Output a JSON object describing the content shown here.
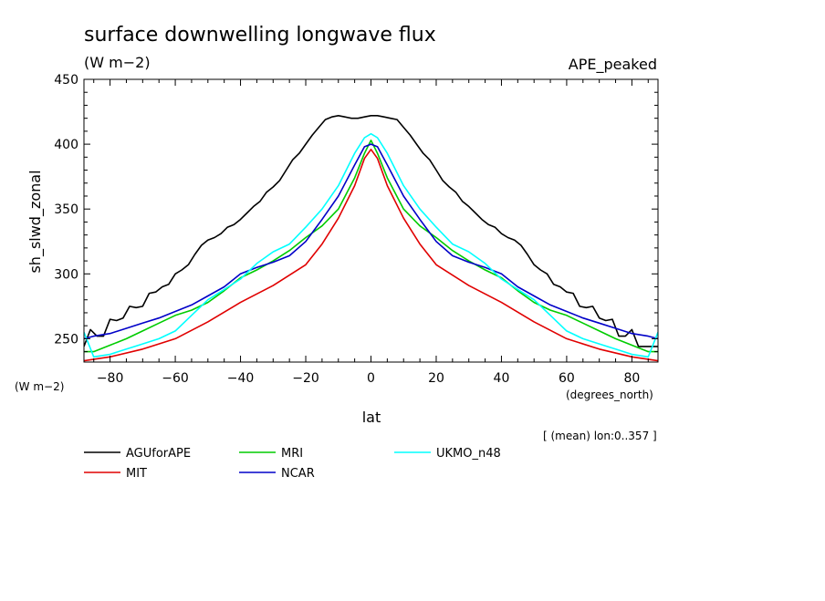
{
  "chart_data": {
    "type": "line",
    "title": "surface downwelling longwave flux",
    "units": "(W m−2)",
    "experiment": "APE_peaked",
    "ylabel": "sh_slwd_zonal",
    "yunits": "(W m−2)",
    "xlabel": "lat",
    "xunits": "(degrees_north)",
    "note": "[ (mean) lon:0..357 ]",
    "xlim": [
      -88,
      88
    ],
    "ylim": [
      232,
      450
    ],
    "xticks": [
      -80,
      -60,
      -40,
      -20,
      0,
      20,
      40,
      60,
      80
    ],
    "xtick_labels": [
      "−80",
      "−60",
      "−40",
      "−20",
      "0",
      "20",
      "40",
      "60",
      "80"
    ],
    "yticks": [
      250,
      300,
      350,
      400,
      450
    ],
    "ytick_labels": [
      "250",
      "300",
      "350",
      "400",
      "450"
    ],
    "grid": false,
    "legend": "bottom",
    "series": [
      {
        "name": "AGUforAPE",
        "color": "#000000",
        "x": [
          -88,
          -86,
          -84,
          -82,
          -80,
          -78,
          -76,
          -74,
          -72,
          -70,
          -68,
          -66,
          -64,
          -62,
          -60,
          -58,
          -56,
          -54,
          -52,
          -50,
          -48,
          -46,
          -44,
          -42,
          -40,
          -38,
          -36,
          -34,
          -32,
          -30,
          -28,
          -26,
          -24,
          -22,
          -20,
          -18,
          -16,
          -14,
          -12,
          -10,
          -8,
          -6,
          -4,
          -2,
          0,
          2,
          4,
          6,
          8,
          10,
          12,
          14,
          16,
          18,
          20,
          22,
          24,
          26,
          28,
          30,
          32,
          34,
          36,
          38,
          40,
          42,
          44,
          46,
          48,
          50,
          52,
          54,
          56,
          58,
          60,
          62,
          64,
          66,
          68,
          70,
          72,
          74,
          76,
          78,
          80,
          82,
          84,
          86,
          88
        ],
        "values": [
          244,
          257,
          252,
          252,
          265,
          264,
          266,
          275,
          274,
          275,
          285,
          286,
          290,
          292,
          300,
          303,
          307,
          315,
          322,
          326,
          328,
          331,
          336,
          338,
          342,
          347,
          352,
          356,
          363,
          367,
          372,
          380,
          388,
          393,
          400,
          407,
          413,
          419,
          421,
          422,
          421,
          420,
          420,
          421,
          422,
          422,
          421,
          420,
          419,
          413,
          407,
          400,
          393,
          388,
          380,
          372,
          367,
          363,
          356,
          352,
          347,
          342,
          338,
          336,
          331,
          328,
          326,
          322,
          315,
          307,
          303,
          300,
          292,
          290,
          286,
          285,
          275,
          274,
          275,
          266,
          264,
          265,
          252,
          252,
          257,
          244,
          244,
          244,
          244
        ]
      },
      {
        "name": "MIT",
        "color": "#e00000",
        "x": [
          -88,
          -80,
          -70,
          -60,
          -50,
          -40,
          -30,
          -20,
          -15,
          -10,
          -5,
          -2,
          0,
          2,
          5,
          10,
          15,
          20,
          30,
          40,
          50,
          60,
          70,
          80,
          88
        ],
        "values": [
          233,
          236,
          242,
          250,
          263,
          278,
          291,
          307,
          323,
          343,
          368,
          389,
          396,
          389,
          368,
          343,
          323,
          307,
          291,
          278,
          263,
          250,
          242,
          236,
          233
        ]
      },
      {
        "name": "MRI",
        "color": "#00cc00",
        "x": [
          -88,
          -85,
          -80,
          -75,
          -70,
          -65,
          -60,
          -55,
          -50,
          -45,
          -40,
          -35,
          -30,
          -25,
          -20,
          -15,
          -10,
          -5,
          -2,
          0,
          2,
          5,
          10,
          15,
          20,
          25,
          30,
          35,
          40,
          45,
          50,
          55,
          60,
          65,
          70,
          75,
          80,
          85,
          88
        ],
        "values": [
          240,
          240,
          245,
          250,
          256,
          262,
          268,
          272,
          278,
          287,
          297,
          303,
          310,
          318,
          328,
          337,
          350,
          374,
          393,
          403,
          393,
          374,
          350,
          337,
          328,
          318,
          310,
          303,
          297,
          287,
          278,
          272,
          268,
          262,
          256,
          250,
          245,
          240,
          240
        ]
      },
      {
        "name": "NCAR",
        "color": "#0000c8",
        "x": [
          -88,
          -85,
          -80,
          -75,
          -70,
          -65,
          -60,
          -55,
          -50,
          -45,
          -40,
          -35,
          -30,
          -25,
          -20,
          -15,
          -10,
          -5,
          -2,
          0,
          2,
          5,
          10,
          15,
          20,
          25,
          30,
          35,
          40,
          45,
          50,
          55,
          60,
          65,
          70,
          75,
          80,
          85,
          88
        ],
        "values": [
          250,
          252,
          254,
          258,
          262,
          266,
          271,
          276,
          283,
          290,
          300,
          305,
          309,
          314,
          325,
          342,
          360,
          384,
          398,
          400,
          398,
          384,
          360,
          342,
          325,
          314,
          309,
          305,
          300,
          290,
          283,
          276,
          271,
          266,
          262,
          258,
          254,
          252,
          250
        ]
      },
      {
        "name": "UKMO_n48",
        "color": "#00ffff",
        "x": [
          -88,
          -85,
          -80,
          -75,
          -70,
          -65,
          -60,
          -55,
          -50,
          -45,
          -40,
          -35,
          -30,
          -25,
          -20,
          -15,
          -10,
          -5,
          -2,
          0,
          2,
          5,
          10,
          15,
          20,
          25,
          30,
          35,
          40,
          45,
          50,
          55,
          60,
          65,
          70,
          75,
          80,
          85,
          88
        ],
        "values": [
          255,
          236,
          238,
          242,
          246,
          250,
          256,
          268,
          280,
          288,
          296,
          308,
          317,
          323,
          336,
          350,
          368,
          393,
          405,
          408,
          405,
          393,
          368,
          350,
          336,
          323,
          317,
          308,
          296,
          288,
          280,
          268,
          256,
          250,
          246,
          242,
          238,
          236,
          255
        ]
      }
    ]
  }
}
